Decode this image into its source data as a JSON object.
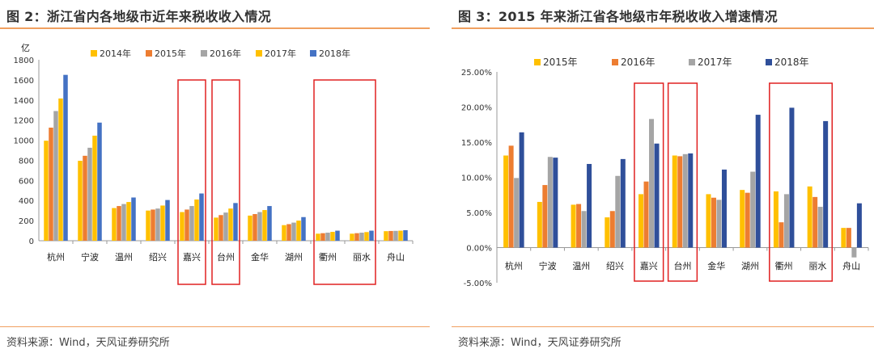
{
  "panels": {
    "left": {
      "title": "图 2：浙江省内各地级市近年来税收收入情况",
      "source": "资料来源：Wind，天风证券研究所"
    },
    "right": {
      "title": "图 3：2015 年来浙江省各地级市年税收收入增速情况",
      "source": "资料来源：Wind，天风证券研究所"
    }
  },
  "chart_data": [
    {
      "type": "bar",
      "title": "",
      "ylabel": "亿",
      "xlabel": "",
      "ylim": [
        0,
        1800
      ],
      "yticks": [
        "0",
        "200",
        "400",
        "600",
        "800",
        "1000",
        "1200",
        "1400",
        "1600",
        "1800"
      ],
      "grid": false,
      "legend": "top",
      "categories": [
        "杭州",
        "宁波",
        "温州",
        "绍兴",
        "嘉兴",
        "台州",
        "金华",
        "湖州",
        "衢州",
        "丽水",
        "舟山"
      ],
      "highlighted_categories": [
        "嘉兴",
        "台州",
        "衢州",
        "丽水"
      ],
      "series": [
        {
          "name": "2014年",
          "color": "#ffc000",
          "values": [
            995,
            795,
            325,
            300,
            285,
            230,
            250,
            155,
            70,
            70,
            95
          ]
        },
        {
          "name": "2015年",
          "color": "#ed7d31",
          "values": [
            1125,
            845,
            345,
            310,
            310,
            255,
            265,
            165,
            75,
            75,
            97
          ]
        },
        {
          "name": "2016年",
          "color": "#a5a5a5",
          "values": [
            1290,
            925,
            365,
            320,
            345,
            280,
            285,
            180,
            80,
            80,
            98
          ]
        },
        {
          "name": "2017年",
          "color": "#ffc000",
          "values": [
            1415,
            1045,
            385,
            350,
            410,
            320,
            305,
            200,
            88,
            86,
            100
          ]
        },
        {
          "name": "2018年",
          "color": "#4472c4",
          "values": [
            1650,
            1175,
            430,
            405,
            470,
            375,
            345,
            235,
            100,
            100,
            105
          ]
        }
      ]
    },
    {
      "type": "bar",
      "title": "",
      "xlabel": "",
      "ylabel": "",
      "ylim": [
        -5,
        25
      ],
      "yticks": [
        "-5.00%",
        "0.00%",
        "5.00%",
        "10.00%",
        "15.00%",
        "20.00%",
        "25.00%"
      ],
      "grid": false,
      "legend": "top",
      "categories": [
        "杭州",
        "宁波",
        "温州",
        "绍兴",
        "嘉兴",
        "台州",
        "金华",
        "湖州",
        "衢州",
        "丽水",
        "舟山"
      ],
      "highlighted_categories": [
        "嘉兴",
        "台州",
        "衢州",
        "丽水"
      ],
      "series": [
        {
          "name": "2015年",
          "color": "#ffc000",
          "values": [
            13.1,
            6.5,
            6.1,
            4.3,
            7.6,
            13.1,
            7.6,
            8.2,
            8.0,
            8.7,
            2.8
          ]
        },
        {
          "name": "2016年",
          "color": "#ed7d31",
          "values": [
            14.5,
            8.9,
            6.2,
            5.2,
            9.4,
            13.0,
            7.1,
            7.8,
            3.6,
            7.2,
            2.8
          ]
        },
        {
          "name": "2017年",
          "color": "#a5a5a5",
          "values": [
            9.9,
            12.9,
            5.2,
            10.2,
            18.3,
            13.3,
            6.8,
            10.8,
            7.6,
            5.8,
            -1.4
          ]
        },
        {
          "name": "2018年",
          "color": "#2f4f9a",
          "values": [
            16.4,
            12.8,
            11.9,
            12.6,
            14.8,
            13.4,
            11.1,
            18.9,
            19.9,
            18.0,
            6.3
          ]
        }
      ]
    }
  ]
}
